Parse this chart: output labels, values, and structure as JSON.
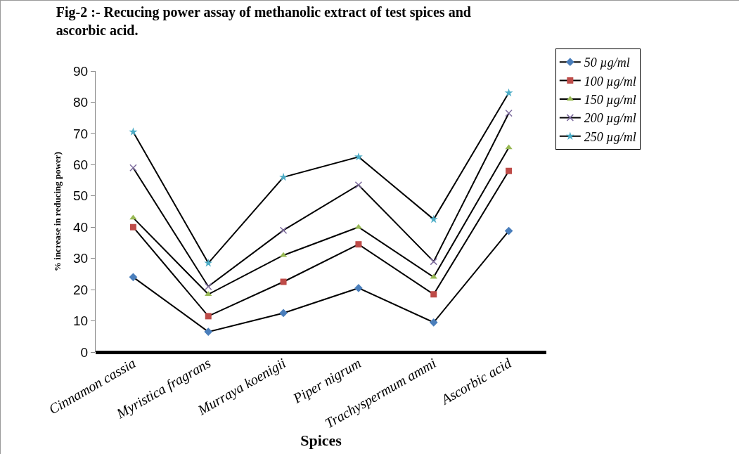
{
  "chart_data": {
    "type": "line",
    "title": "Fig-2 :- Recucing power assay of methanolic extract of test spices and\nascorbic acid.",
    "xlabel": "Spices",
    "ylabel": "% increase in reducing power)",
    "categories": [
      "Cinnamon cassia",
      "Myristica fragrans",
      "Murraya koenigii",
      "Piper nigrum",
      "Trachyspermum ammi",
      "Ascorbic acid"
    ],
    "series": [
      {
        "name": "50 µg/ml",
        "color": "#4a7ebb",
        "marker": "diamond",
        "values": [
          24,
          6.5,
          12.5,
          20.5,
          9.5,
          38.8
        ]
      },
      {
        "name": "100 µg/ml",
        "color": "#be4b48",
        "marker": "square",
        "values": [
          40,
          11.5,
          22.5,
          34.5,
          18.5,
          58
        ]
      },
      {
        "name": "150 µg/ml",
        "color": "#98b954",
        "marker": "triangle",
        "values": [
          43,
          18.5,
          31,
          40,
          24,
          65.5
        ]
      },
      {
        "name": "200 µg/ml",
        "color": "#7d6b9e",
        "marker": "cross",
        "values": [
          59,
          21,
          39,
          53.5,
          29,
          76.5
        ]
      },
      {
        "name": "250 µg/ml",
        "color": "#4bacc6",
        "marker": "star",
        "values": [
          70.5,
          28.5,
          56,
          62.5,
          42.5,
          83
        ]
      }
    ],
    "ylim": [
      0,
      90
    ],
    "yticks": [
      0,
      10,
      20,
      30,
      40,
      50,
      60,
      70,
      80,
      90
    ],
    "grid": false,
    "legend": "top right",
    "line_style": "solid"
  }
}
